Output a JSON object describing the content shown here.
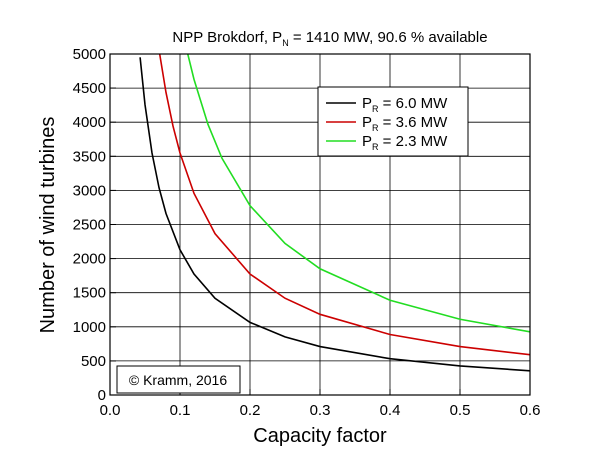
{
  "chart_data": {
    "type": "line",
    "title_parts": [
      "NPP Brokdorf, P",
      "N",
      " = 1410 MW,  90.6 % available"
    ],
    "xlabel": "Capacity factor",
    "ylabel": "Number of wind turbines",
    "annotation": "© Kramm, 2016",
    "xlim": [
      0,
      0.6
    ],
    "ylim": [
      0,
      5000
    ],
    "xticks": [
      {
        "value": 0,
        "label": "0.0"
      },
      0.1,
      0.2,
      0.3,
      0.4,
      0.5,
      0.6
    ],
    "yticks": [
      0,
      500,
      1000,
      1500,
      2000,
      2500,
      3000,
      3500,
      4000,
      4500,
      5000
    ],
    "grid": true,
    "legend": "upper right",
    "series": [
      {
        "name": [
          "P",
          "R",
          " = 6.0 MW"
        ],
        "color": "#000000",
        "x": [
          0.043,
          0.05,
          0.06,
          0.07,
          0.08,
          0.1,
          0.12,
          0.15,
          0.2,
          0.25,
          0.3,
          0.4,
          0.5,
          0.6
        ],
        "values": [
          4951,
          4258,
          3548,
          3041,
          2661,
          2129,
          1774,
          1419,
          1065,
          852,
          710,
          532,
          426,
          355
        ]
      },
      {
        "name": [
          "P",
          "R",
          " = 3.6 MW"
        ],
        "color": "#cc0000",
        "x": [
          0.071,
          0.08,
          0.09,
          0.1,
          0.12,
          0.15,
          0.2,
          0.25,
          0.3,
          0.4,
          0.5,
          0.6
        ],
        "values": [
          4998,
          4436,
          3943,
          3549,
          2957,
          2366,
          1774,
          1419,
          1183,
          887,
          710,
          591
        ]
      },
      {
        "name": [
          "P",
          "R",
          " = 2.3 MW"
        ],
        "color": "#22dd22",
        "x": [
          0.111,
          0.12,
          0.14,
          0.16,
          0.2,
          0.25,
          0.3,
          0.4,
          0.5,
          0.6
        ],
        "values": [
          5004,
          4628,
          3967,
          3471,
          2777,
          2222,
          1851,
          1389,
          1111,
          926
        ]
      }
    ]
  }
}
